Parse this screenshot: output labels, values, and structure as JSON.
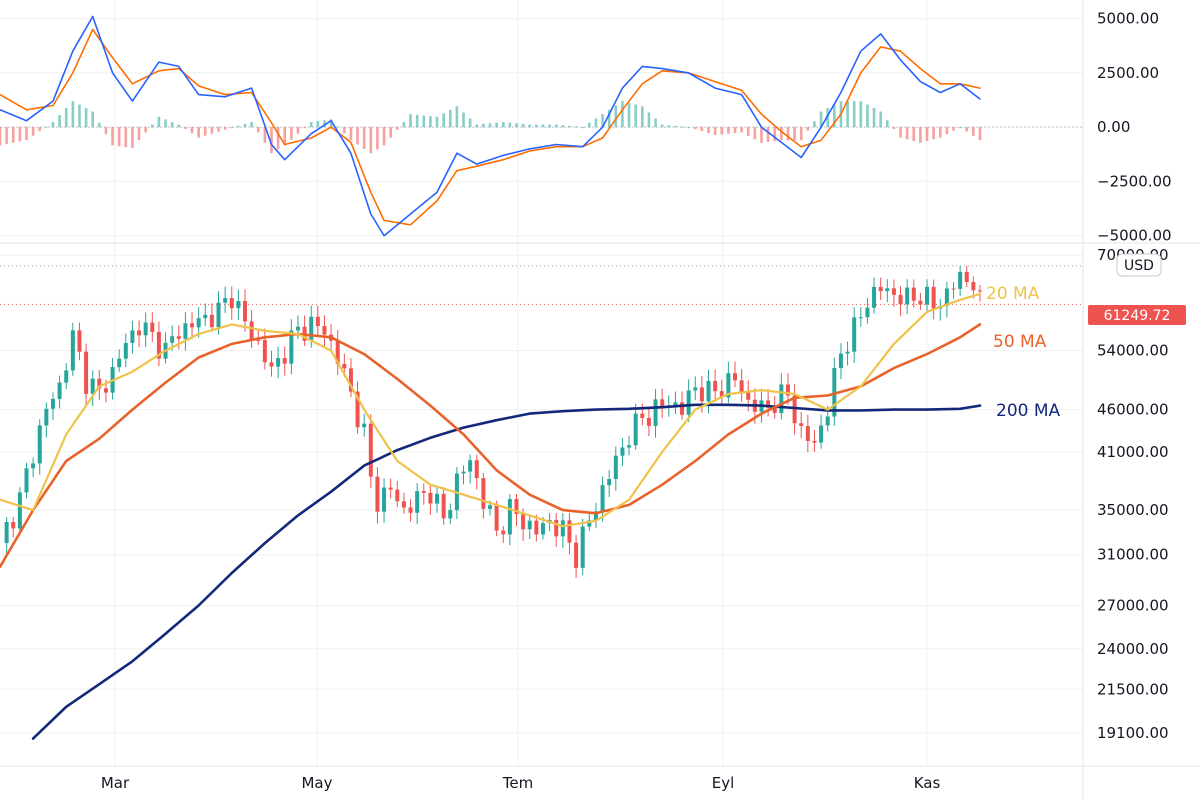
{
  "chart_data": {
    "type": "line",
    "currency": "USD",
    "current_price": "61249.72",
    "x_labels": [
      "Mar",
      "May",
      "Tem",
      "Eyl",
      "Kas"
    ],
    "price": {
      "y_ticks": [
        "70000.00",
        "54000.00",
        "46000.00",
        "41000.00",
        "35000.00",
        "31000.00",
        "27000.00",
        "24000.00",
        "21500.00",
        "19100.00"
      ],
      "y_tick_values": [
        70000,
        54000,
        46000,
        41000,
        35000,
        31000,
        27000,
        24000,
        21500,
        19100
      ],
      "scale": "log",
      "ylim": [
        17500,
        71000
      ],
      "high_line": 68000,
      "moving_averages": [
        {
          "name": "20 MA",
          "color": "#f0c24a"
        },
        {
          "name": "50 MA",
          "color": "#e8632c"
        },
        {
          "name": "200 MA",
          "color": "#14287a"
        }
      ],
      "close_series": [
        {
          "t": 0,
          "v": 32000
        },
        {
          "t": 3,
          "v": 36000
        },
        {
          "t": 5,
          "v": 41000
        },
        {
          "t": 7,
          "v": 46000
        },
        {
          "t": 9,
          "v": 49000
        },
        {
          "t": 11,
          "v": 56000
        },
        {
          "t": 13,
          "v": 50000
        },
        {
          "t": 15,
          "v": 48000
        },
        {
          "t": 17,
          "v": 51000
        },
        {
          "t": 19,
          "v": 55000
        },
        {
          "t": 21,
          "v": 58000
        },
        {
          "t": 23,
          "v": 56000
        },
        {
          "t": 25,
          "v": 54000
        },
        {
          "t": 27,
          "v": 57000
        },
        {
          "t": 29,
          "v": 58000
        },
        {
          "t": 31,
          "v": 59000
        },
        {
          "t": 33,
          "v": 60000
        },
        {
          "t": 35,
          "v": 63000
        },
        {
          "t": 37,
          "v": 58000
        },
        {
          "t": 39,
          "v": 55000
        },
        {
          "t": 41,
          "v": 51000
        },
        {
          "t": 43,
          "v": 54000
        },
        {
          "t": 45,
          "v": 57000
        },
        {
          "t": 47,
          "v": 58000
        },
        {
          "t": 49,
          "v": 57000
        },
        {
          "t": 51,
          "v": 53000
        },
        {
          "t": 53,
          "v": 48000
        },
        {
          "t": 55,
          "v": 43000
        },
        {
          "t": 56,
          "v": 38000
        },
        {
          "t": 57,
          "v": 36000
        },
        {
          "t": 59,
          "v": 37000
        },
        {
          "t": 61,
          "v": 35000
        },
        {
          "t": 63,
          "v": 36000
        },
        {
          "t": 65,
          "v": 37000
        },
        {
          "t": 67,
          "v": 34000
        },
        {
          "t": 69,
          "v": 38000
        },
        {
          "t": 71,
          "v": 40000
        },
        {
          "t": 73,
          "v": 36000
        },
        {
          "t": 75,
          "v": 33000
        },
        {
          "t": 77,
          "v": 35000
        },
        {
          "t": 79,
          "v": 34000
        },
        {
          "t": 81,
          "v": 33000
        },
        {
          "t": 83,
          "v": 34000
        },
        {
          "t": 85,
          "v": 33000
        },
        {
          "t": 87,
          "v": 31000
        },
        {
          "t": 89,
          "v": 34000
        },
        {
          "t": 91,
          "v": 37000
        },
        {
          "t": 93,
          "v": 40000
        },
        {
          "t": 95,
          "v": 43000
        },
        {
          "t": 97,
          "v": 45000
        },
        {
          "t": 99,
          "v": 46000
        },
        {
          "t": 101,
          "v": 47000
        },
        {
          "t": 103,
          "v": 46000
        },
        {
          "t": 105,
          "v": 49000
        },
        {
          "t": 107,
          "v": 48000
        },
        {
          "t": 109,
          "v": 49000
        },
        {
          "t": 111,
          "v": 50000
        },
        {
          "t": 113,
          "v": 47000
        },
        {
          "t": 115,
          "v": 46000
        },
        {
          "t": 117,
          "v": 47000
        },
        {
          "t": 119,
          "v": 48000
        },
        {
          "t": 121,
          "v": 43000
        },
        {
          "t": 123,
          "v": 42000
        },
        {
          "t": 125,
          "v": 46000
        },
        {
          "t": 127,
          "v": 54000
        },
        {
          "t": 129,
          "v": 57000
        },
        {
          "t": 131,
          "v": 62000
        },
        {
          "t": 133,
          "v": 64000
        },
        {
          "t": 135,
          "v": 63000
        },
        {
          "t": 137,
          "v": 62000
        },
        {
          "t": 139,
          "v": 63000
        },
        {
          "t": 141,
          "v": 61000
        },
        {
          "t": 143,
          "v": 63000
        },
        {
          "t": 145,
          "v": 66000
        },
        {
          "t": 147,
          "v": 65000
        },
        {
          "t": 148,
          "v": 61249.72
        }
      ],
      "ma20": [
        {
          "t": 0,
          "v": 36000
        },
        {
          "t": 5,
          "v": 35000
        },
        {
          "t": 10,
          "v": 43000
        },
        {
          "t": 15,
          "v": 49000
        },
        {
          "t": 20,
          "v": 51000
        },
        {
          "t": 25,
          "v": 54000
        },
        {
          "t": 30,
          "v": 56500
        },
        {
          "t": 35,
          "v": 58000
        },
        {
          "t": 40,
          "v": 57000
        },
        {
          "t": 45,
          "v": 56500
        },
        {
          "t": 50,
          "v": 54000
        },
        {
          "t": 55,
          "v": 46000
        },
        {
          "t": 60,
          "v": 40000
        },
        {
          "t": 65,
          "v": 37500
        },
        {
          "t": 70,
          "v": 36500
        },
        {
          "t": 75,
          "v": 35500
        },
        {
          "t": 80,
          "v": 34500
        },
        {
          "t": 85,
          "v": 33500
        },
        {
          "t": 90,
          "v": 34000
        },
        {
          "t": 95,
          "v": 36000
        },
        {
          "t": 100,
          "v": 41000
        },
        {
          "t": 105,
          "v": 46000
        },
        {
          "t": 110,
          "v": 48000
        },
        {
          "t": 115,
          "v": 48500
        },
        {
          "t": 120,
          "v": 48000
        },
        {
          "t": 125,
          "v": 46000
        },
        {
          "t": 130,
          "v": 49000
        },
        {
          "t": 135,
          "v": 55000
        },
        {
          "t": 140,
          "v": 60000
        },
        {
          "t": 145,
          "v": 62000
        },
        {
          "t": 148,
          "v": 63000
        }
      ],
      "ma50": [
        {
          "t": 0,
          "v": 30000
        },
        {
          "t": 5,
          "v": 35000
        },
        {
          "t": 10,
          "v": 40000
        },
        {
          "t": 15,
          "v": 42500
        },
        {
          "t": 20,
          "v": 46000
        },
        {
          "t": 25,
          "v": 49500
        },
        {
          "t": 30,
          "v": 53000
        },
        {
          "t": 35,
          "v": 55000
        },
        {
          "t": 40,
          "v": 56000
        },
        {
          "t": 45,
          "v": 56500
        },
        {
          "t": 50,
          "v": 56000
        },
        {
          "t": 55,
          "v": 53500
        },
        {
          "t": 60,
          "v": 50000
        },
        {
          "t": 65,
          "v": 46500
        },
        {
          "t": 70,
          "v": 43000
        },
        {
          "t": 75,
          "v": 39000
        },
        {
          "t": 80,
          "v": 36500
        },
        {
          "t": 85,
          "v": 35000
        },
        {
          "t": 90,
          "v": 34700
        },
        {
          "t": 95,
          "v": 35500
        },
        {
          "t": 100,
          "v": 37500
        },
        {
          "t": 105,
          "v": 40000
        },
        {
          "t": 110,
          "v": 43000
        },
        {
          "t": 115,
          "v": 45500
        },
        {
          "t": 120,
          "v": 47500
        },
        {
          "t": 125,
          "v": 47800
        },
        {
          "t": 130,
          "v": 49000
        },
        {
          "t": 135,
          "v": 51500
        },
        {
          "t": 140,
          "v": 53500
        },
        {
          "t": 145,
          "v": 56000
        },
        {
          "t": 148,
          "v": 58000
        }
      ],
      "ma200": [
        {
          "t": 5,
          "v": 18800
        },
        {
          "t": 10,
          "v": 20500
        },
        {
          "t": 15,
          "v": 21800
        },
        {
          "t": 20,
          "v": 23200
        },
        {
          "t": 25,
          "v": 25000
        },
        {
          "t": 30,
          "v": 27000
        },
        {
          "t": 35,
          "v": 29500
        },
        {
          "t": 40,
          "v": 32000
        },
        {
          "t": 45,
          "v": 34500
        },
        {
          "t": 50,
          "v": 36800
        },
        {
          "t": 55,
          "v": 39500
        },
        {
          "t": 60,
          "v": 41200
        },
        {
          "t": 65,
          "v": 42600
        },
        {
          "t": 70,
          "v": 43800
        },
        {
          "t": 75,
          "v": 44700
        },
        {
          "t": 80,
          "v": 45500
        },
        {
          "t": 85,
          "v": 45800
        },
        {
          "t": 90,
          "v": 46000
        },
        {
          "t": 95,
          "v": 46100
        },
        {
          "t": 100,
          "v": 46300
        },
        {
          "t": 105,
          "v": 46600
        },
        {
          "t": 110,
          "v": 46600
        },
        {
          "t": 115,
          "v": 46500
        },
        {
          "t": 120,
          "v": 46200
        },
        {
          "t": 125,
          "v": 45900
        },
        {
          "t": 130,
          "v": 45900
        },
        {
          "t": 135,
          "v": 46000
        },
        {
          "t": 140,
          "v": 46000
        },
        {
          "t": 145,
          "v": 46100
        },
        {
          "t": 148,
          "v": 46500
        }
      ]
    },
    "macd": {
      "y_ticks": [
        "5000.00",
        "2500.00",
        "0.00",
        "−2500.00",
        "−5000.00"
      ],
      "y_tick_values": [
        5000,
        2500,
        0,
        -2500,
        -5000
      ],
      "ylim": [
        -5200,
        5400
      ],
      "macd_color": "#2962ff",
      "signal_color": "#ff6d00",
      "hist_pos_color": "#26a69a",
      "hist_neg_color": "#ef5350",
      "macd_line": [
        {
          "t": 0,
          "v": 800
        },
        {
          "t": 4,
          "v": 300
        },
        {
          "t": 8,
          "v": 1200
        },
        {
          "t": 11,
          "v": 3500
        },
        {
          "t": 14,
          "v": 5100
        },
        {
          "t": 17,
          "v": 2500
        },
        {
          "t": 20,
          "v": 1200
        },
        {
          "t": 24,
          "v": 3000
        },
        {
          "t": 27,
          "v": 2800
        },
        {
          "t": 30,
          "v": 1500
        },
        {
          "t": 34,
          "v": 1400
        },
        {
          "t": 38,
          "v": 1800
        },
        {
          "t": 41,
          "v": -800
        },
        {
          "t": 43,
          "v": -1500
        },
        {
          "t": 47,
          "v": -300
        },
        {
          "t": 50,
          "v": 300
        },
        {
          "t": 53,
          "v": -1200
        },
        {
          "t": 56,
          "v": -4000
        },
        {
          "t": 58,
          "v": -5000
        },
        {
          "t": 62,
          "v": -4000
        },
        {
          "t": 66,
          "v": -3000
        },
        {
          "t": 69,
          "v": -1200
        },
        {
          "t": 72,
          "v": -1700
        },
        {
          "t": 76,
          "v": -1300
        },
        {
          "t": 80,
          "v": -1000
        },
        {
          "t": 84,
          "v": -800
        },
        {
          "t": 88,
          "v": -900
        },
        {
          "t": 91,
          "v": 0
        },
        {
          "t": 94,
          "v": 1800
        },
        {
          "t": 97,
          "v": 2800
        },
        {
          "t": 100,
          "v": 2700
        },
        {
          "t": 104,
          "v": 2500
        },
        {
          "t": 108,
          "v": 1800
        },
        {
          "t": 112,
          "v": 1500
        },
        {
          "t": 115,
          "v": 0
        },
        {
          "t": 118,
          "v": -700
        },
        {
          "t": 121,
          "v": -1400
        },
        {
          "t": 124,
          "v": 0
        },
        {
          "t": 127,
          "v": 1600
        },
        {
          "t": 130,
          "v": 3500
        },
        {
          "t": 133,
          "v": 4300
        },
        {
          "t": 136,
          "v": 3100
        },
        {
          "t": 139,
          "v": 2100
        },
        {
          "t": 142,
          "v": 1600
        },
        {
          "t": 145,
          "v": 2000
        },
        {
          "t": 148,
          "v": 1300
        }
      ],
      "signal_line": [
        {
          "t": 0,
          "v": 1500
        },
        {
          "t": 4,
          "v": 800
        },
        {
          "t": 8,
          "v": 1000
        },
        {
          "t": 11,
          "v": 2500
        },
        {
          "t": 14,
          "v": 4500
        },
        {
          "t": 17,
          "v": 3200
        },
        {
          "t": 20,
          "v": 2000
        },
        {
          "t": 24,
          "v": 2600
        },
        {
          "t": 27,
          "v": 2700
        },
        {
          "t": 30,
          "v": 1900
        },
        {
          "t": 34,
          "v": 1500
        },
        {
          "t": 38,
          "v": 1600
        },
        {
          "t": 41,
          "v": 200
        },
        {
          "t": 43,
          "v": -800
        },
        {
          "t": 47,
          "v": -500
        },
        {
          "t": 50,
          "v": 0
        },
        {
          "t": 53,
          "v": -700
        },
        {
          "t": 56,
          "v": -3000
        },
        {
          "t": 58,
          "v": -4300
        },
        {
          "t": 62,
          "v": -4500
        },
        {
          "t": 66,
          "v": -3400
        },
        {
          "t": 69,
          "v": -2000
        },
        {
          "t": 72,
          "v": -1800
        },
        {
          "t": 76,
          "v": -1500
        },
        {
          "t": 80,
          "v": -1100
        },
        {
          "t": 84,
          "v": -900
        },
        {
          "t": 88,
          "v": -900
        },
        {
          "t": 91,
          "v": -500
        },
        {
          "t": 94,
          "v": 800
        },
        {
          "t": 97,
          "v": 2000
        },
        {
          "t": 100,
          "v": 2600
        },
        {
          "t": 104,
          "v": 2500
        },
        {
          "t": 108,
          "v": 2100
        },
        {
          "t": 112,
          "v": 1700
        },
        {
          "t": 115,
          "v": 600
        },
        {
          "t": 118,
          "v": -200
        },
        {
          "t": 121,
          "v": -900
        },
        {
          "t": 124,
          "v": -600
        },
        {
          "t": 127,
          "v": 600
        },
        {
          "t": 130,
          "v": 2500
        },
        {
          "t": 133,
          "v": 3700
        },
        {
          "t": 136,
          "v": 3500
        },
        {
          "t": 139,
          "v": 2700
        },
        {
          "t": 142,
          "v": 2000
        },
        {
          "t": 145,
          "v": 2000
        },
        {
          "t": 148,
          "v": 1800
        }
      ]
    }
  }
}
